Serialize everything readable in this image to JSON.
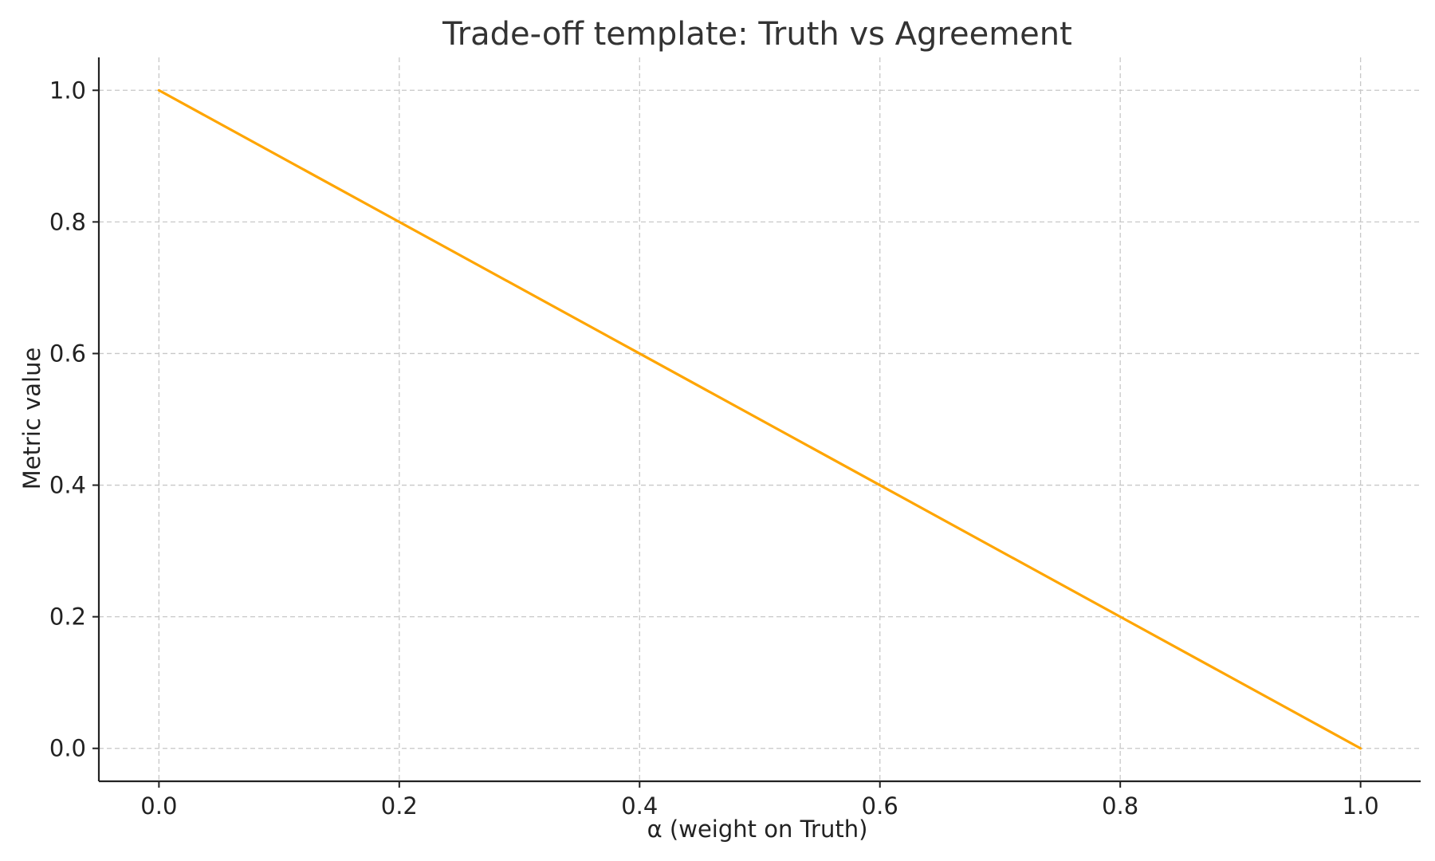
{
  "chart_data": {
    "type": "line",
    "title": "Trade-off template: Truth vs Agreement",
    "xlabel": "α (weight on Truth)",
    "ylabel": "Metric value",
    "xlim": [
      -0.05,
      1.05
    ],
    "ylim": [
      -0.05,
      1.05
    ],
    "x_ticks": [
      0.0,
      0.2,
      0.4,
      0.6,
      0.8,
      1.0
    ],
    "y_ticks": [
      0.0,
      0.2,
      0.4,
      0.6,
      0.8,
      1.0
    ],
    "x_tick_labels": [
      "0.0",
      "0.2",
      "0.4",
      "0.6",
      "0.8",
      "1.0"
    ],
    "y_tick_labels": [
      "0.0",
      "0.2",
      "0.4",
      "0.6",
      "0.8",
      "1.0"
    ],
    "grid": true,
    "series": [
      {
        "color": "#FFA500",
        "x": [
          0.0,
          0.2,
          0.4,
          0.6,
          0.8,
          1.0
        ],
        "y": [
          1.0,
          0.8,
          0.6,
          0.4,
          0.2,
          0.0
        ]
      }
    ]
  }
}
